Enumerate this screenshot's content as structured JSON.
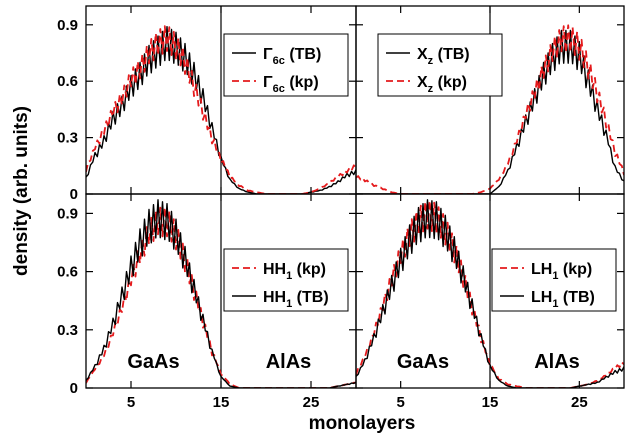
{
  "chart_data": [
    {
      "type": "line",
      "panel": "top-left",
      "ylim": [
        0,
        1.0
      ],
      "xlim": [
        0,
        30
      ],
      "yticks": [
        0,
        0.3,
        0.6,
        0.9
      ],
      "ytick_labels": [
        "0",
        "0.3",
        "0.6",
        "0.9"
      ],
      "xticks": [
        5,
        15,
        25
      ],
      "xtick_labels": [],
      "legend_placement": "top-right",
      "region_labels": [],
      "series": [
        {
          "name": "Γ6c (TB)",
          "name_main": "Γ",
          "name_sub": "6c",
          "name_suffix": " (TB)",
          "style": "solid-black",
          "x": [
            0,
            1,
            2,
            3,
            4,
            5,
            6,
            7,
            8,
            9,
            10,
            11,
            12,
            13,
            14,
            15,
            16,
            17,
            18,
            19,
            20,
            21,
            22,
            23,
            24,
            25,
            26,
            27,
            28,
            29,
            30
          ],
          "y": [
            0.09,
            0.22,
            0.31,
            0.44,
            0.52,
            0.63,
            0.7,
            0.79,
            0.84,
            0.89,
            0.86,
            0.8,
            0.7,
            0.56,
            0.38,
            0.2,
            0.08,
            0.03,
            0.01,
            0.0,
            0.0,
            0.0,
            0.0,
            0.0,
            0.0,
            0.01,
            0.02,
            0.04,
            0.07,
            0.11,
            0.13
          ]
        },
        {
          "name": "Γ6c (kp)",
          "name_main": "Γ",
          "name_sub": "6c",
          "name_suffix": " (kp)",
          "style": "dashed-red",
          "x": [
            0,
            1,
            2,
            3,
            4,
            5,
            6,
            7,
            8,
            9,
            10,
            11,
            12,
            13,
            14,
            15,
            16,
            17,
            18,
            19,
            20,
            21,
            22,
            23,
            24,
            25,
            26,
            27,
            28,
            29,
            30
          ],
          "y": [
            0.14,
            0.26,
            0.36,
            0.47,
            0.55,
            0.66,
            0.72,
            0.81,
            0.87,
            0.9,
            0.85,
            0.76,
            0.62,
            0.47,
            0.32,
            0.2,
            0.1,
            0.05,
            0.02,
            0.01,
            0.0,
            0.0,
            0.0,
            0.0,
            0.0,
            0.01,
            0.03,
            0.06,
            0.1,
            0.13,
            0.16
          ]
        }
      ]
    },
    {
      "type": "line",
      "panel": "top-right",
      "ylim": [
        0,
        1.0
      ],
      "xlim": [
        0,
        30
      ],
      "yticks": [
        0,
        0.3,
        0.6,
        0.9
      ],
      "ytick_labels": [],
      "xticks": [
        5,
        15,
        25
      ],
      "xtick_labels": [],
      "legend_placement": "top-left",
      "region_labels": [],
      "series": [
        {
          "name": "Xz (TB)",
          "name_main": "X",
          "name_sub": "z",
          "name_suffix": " (TB)",
          "style": "solid-black",
          "x": [
            0,
            1,
            2,
            3,
            4,
            5,
            6,
            7,
            8,
            9,
            10,
            11,
            12,
            13,
            14,
            15,
            16,
            17,
            18,
            19,
            20,
            21,
            22,
            23,
            24,
            25,
            26,
            27,
            28,
            29,
            30
          ],
          "y": [
            0.0,
            0.0,
            0.0,
            0.0,
            0.0,
            0.0,
            0.0,
            0.0,
            0.0,
            0.0,
            0.0,
            0.0,
            0.0,
            0.0,
            0.0,
            0.0,
            0.04,
            0.13,
            0.27,
            0.42,
            0.56,
            0.7,
            0.8,
            0.87,
            0.87,
            0.81,
            0.66,
            0.5,
            0.34,
            0.15,
            0.07
          ]
        },
        {
          "name": "Xz (kp)",
          "name_main": "X",
          "name_sub": "z",
          "name_suffix": " (kp)",
          "style": "dashed-red",
          "x": [
            0,
            1,
            2,
            3,
            4,
            5,
            6,
            7,
            8,
            9,
            10,
            11,
            12,
            13,
            14,
            15,
            16,
            17,
            18,
            19,
            20,
            21,
            22,
            23,
            24,
            25,
            26,
            27,
            28,
            29,
            30
          ],
          "y": [
            0.1,
            0.08,
            0.05,
            0.03,
            0.01,
            0.0,
            0.0,
            0.0,
            0.0,
            0.0,
            0.0,
            0.0,
            0.0,
            0.0,
            0.01,
            0.03,
            0.08,
            0.17,
            0.3,
            0.45,
            0.58,
            0.71,
            0.82,
            0.89,
            0.9,
            0.85,
            0.73,
            0.58,
            0.42,
            0.24,
            0.12
          ]
        }
      ]
    },
    {
      "type": "line",
      "panel": "bottom-left",
      "ylim": [
        0,
        1.0
      ],
      "xlim": [
        0,
        30
      ],
      "yticks": [
        0,
        0.3,
        0.6,
        0.9
      ],
      "ytick_labels": [
        "0",
        "0.3",
        "0.6",
        "0.9"
      ],
      "xticks": [
        5,
        15,
        25
      ],
      "xtick_labels": [
        "5",
        "15",
        "25"
      ],
      "legend_placement": "right",
      "region_labels": [
        "GaAs",
        "AlAs"
      ],
      "series": [
        {
          "name": "HH1 (kp)",
          "name_main": "HH",
          "name_sub": "1",
          "name_suffix": " (kp)",
          "style": "dashed-red",
          "x": [
            0,
            1,
            2,
            3,
            4,
            5,
            6,
            7,
            8,
            9,
            10,
            11,
            12,
            13,
            14,
            15,
            16,
            17,
            18,
            19,
            20,
            21,
            22,
            23,
            24,
            25,
            26,
            27,
            28,
            29,
            30
          ],
          "y": [
            0.03,
            0.1,
            0.18,
            0.3,
            0.44,
            0.6,
            0.74,
            0.86,
            0.93,
            0.93,
            0.85,
            0.71,
            0.54,
            0.37,
            0.2,
            0.08,
            0.02,
            0.0,
            0.0,
            0.0,
            0.0,
            0.0,
            0.0,
            0.0,
            0.0,
            0.0,
            0.0,
            0.0,
            0.01,
            0.02,
            0.03
          ]
        },
        {
          "name": "HH1 (TB)",
          "name_main": "HH",
          "name_sub": "1",
          "name_suffix": " (TB)",
          "style": "solid-black",
          "x": [
            0,
            1,
            2,
            3,
            4,
            5,
            6,
            7,
            8,
            9,
            10,
            11,
            12,
            13,
            14,
            15,
            16,
            17,
            18,
            19,
            20,
            21,
            22,
            23,
            24,
            25,
            26,
            27,
            28,
            29,
            30
          ],
          "y": [
            0.04,
            0.12,
            0.22,
            0.36,
            0.52,
            0.68,
            0.82,
            0.92,
            0.97,
            0.95,
            0.87,
            0.73,
            0.56,
            0.38,
            0.2,
            0.06,
            0.01,
            0.0,
            0.0,
            0.0,
            0.0,
            0.0,
            0.0,
            0.0,
            0.0,
            0.0,
            0.0,
            0.0,
            0.01,
            0.02,
            0.03
          ]
        }
      ]
    },
    {
      "type": "line",
      "panel": "bottom-right",
      "ylim": [
        0,
        1.0
      ],
      "xlim": [
        0,
        30
      ],
      "yticks": [
        0,
        0.3,
        0.6,
        0.9
      ],
      "ytick_labels": [],
      "xticks": [
        5,
        15,
        25
      ],
      "xtick_labels": [
        "5",
        "15",
        "25"
      ],
      "legend_placement": "right",
      "region_labels": [
        "GaAs",
        "AlAs"
      ],
      "series": [
        {
          "name": "LH1 (kp)",
          "name_main": "LH",
          "name_sub": "1",
          "name_suffix": " (kp)",
          "style": "dashed-red",
          "x": [
            0,
            1,
            2,
            3,
            4,
            5,
            6,
            7,
            8,
            9,
            10,
            11,
            12,
            13,
            14,
            15,
            16,
            17,
            18,
            19,
            20,
            21,
            22,
            23,
            24,
            25,
            26,
            27,
            28,
            29,
            30
          ],
          "y": [
            0.08,
            0.17,
            0.3,
            0.45,
            0.6,
            0.74,
            0.85,
            0.93,
            0.97,
            0.95,
            0.88,
            0.77,
            0.62,
            0.45,
            0.28,
            0.13,
            0.05,
            0.02,
            0.01,
            0.0,
            0.0,
            0.0,
            0.0,
            0.0,
            0.0,
            0.01,
            0.02,
            0.04,
            0.07,
            0.11,
            0.14
          ]
        },
        {
          "name": "LH1 (TB)",
          "name_main": "LH",
          "name_sub": "1",
          "name_suffix": " (TB)",
          "style": "solid-black",
          "x": [
            0,
            1,
            2,
            3,
            4,
            5,
            6,
            7,
            8,
            9,
            10,
            11,
            12,
            13,
            14,
            15,
            16,
            17,
            18,
            19,
            20,
            21,
            22,
            23,
            24,
            25,
            26,
            27,
            28,
            29,
            30
          ],
          "y": [
            0.06,
            0.15,
            0.28,
            0.43,
            0.58,
            0.72,
            0.84,
            0.93,
            0.97,
            0.96,
            0.89,
            0.78,
            0.63,
            0.46,
            0.28,
            0.12,
            0.04,
            0.01,
            0.0,
            0.0,
            0.0,
            0.0,
            0.0,
            0.0,
            0.0,
            0.01,
            0.02,
            0.03,
            0.06,
            0.09,
            0.11
          ]
        }
      ]
    }
  ],
  "axes": {
    "xlabel": "monolayers",
    "ylabel": "density (arb. units)"
  },
  "colors": {
    "tb": "#000000",
    "kp": "#e41a1c"
  }
}
